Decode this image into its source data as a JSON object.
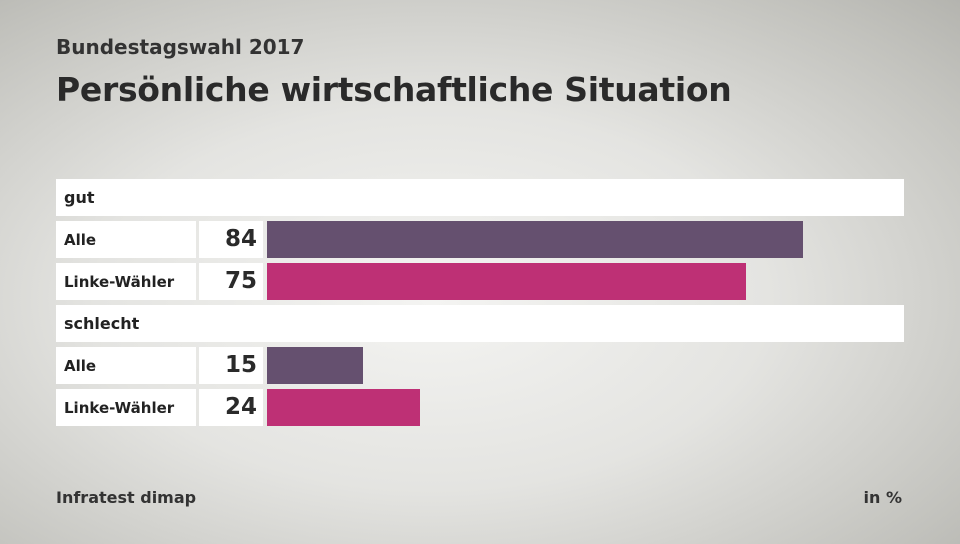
{
  "header": {
    "supertitle": "Bundestagswahl 2017",
    "title": "Persönliche wirtschaftliche Situation"
  },
  "chart_data": {
    "type": "bar",
    "orientation": "horizontal",
    "title": "Persönliche wirtschaftliche Situation",
    "unit": "in %",
    "xlim": [
      0,
      100
    ],
    "groups": [
      {
        "label": "gut",
        "rows": [
          {
            "label": "Alle",
            "value": 84,
            "color": "#65506f"
          },
          {
            "label": "Linke-Wähler",
            "value": 75,
            "color": "#be3075"
          }
        ]
      },
      {
        "label": "schlecht",
        "rows": [
          {
            "label": "Alle",
            "value": 15,
            "color": "#65506f"
          },
          {
            "label": "Linke-Wähler",
            "value": 24,
            "color": "#be3075"
          }
        ]
      }
    ]
  },
  "footer": {
    "source": "Infratest dimap",
    "unit": "in %"
  }
}
